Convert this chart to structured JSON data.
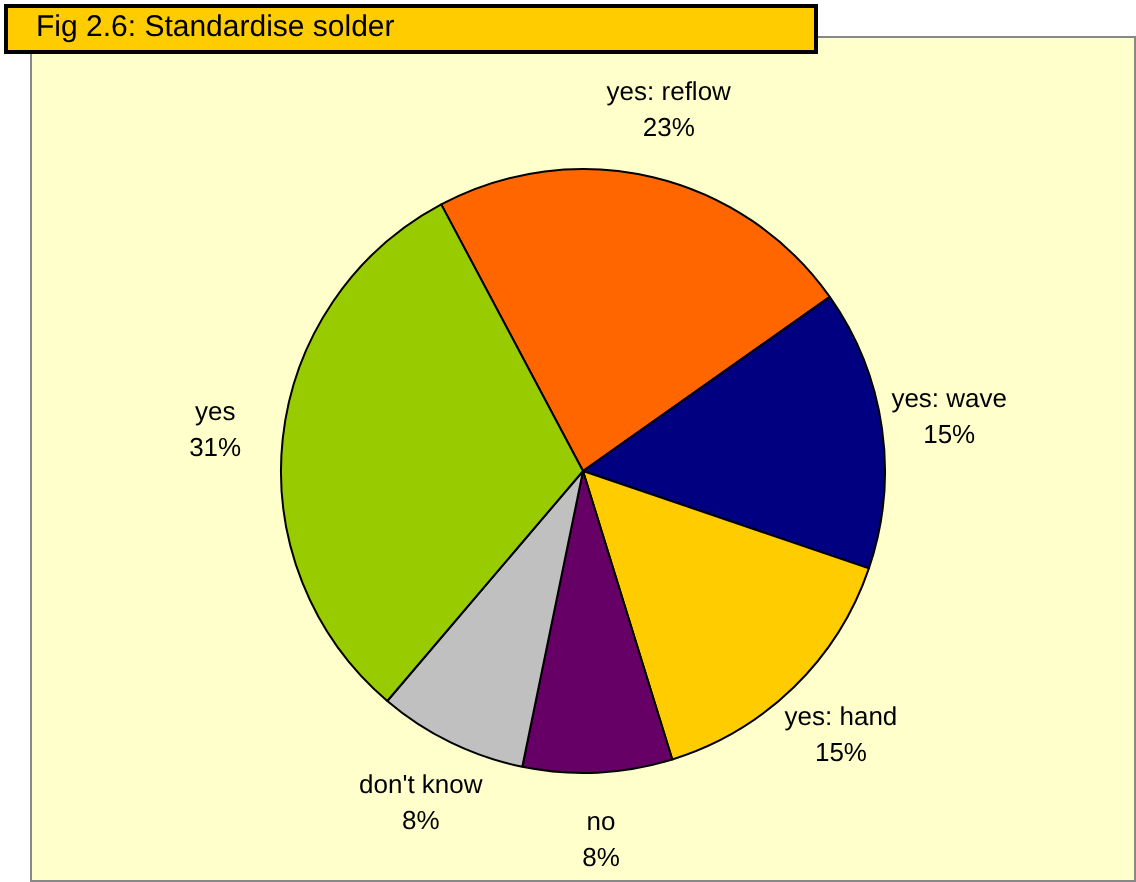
{
  "chart_data": {
    "type": "pie",
    "title": "Fig 2.6: Standardise solder",
    "categories": [
      "yes: reflow",
      "yes: wave",
      "yes: hand",
      "no",
      "don't know",
      "yes"
    ],
    "values": [
      23,
      15,
      15,
      8,
      8,
      31
    ],
    "colors": [
      "#ff6600",
      "#000080",
      "#ffcc00",
      "#660066",
      "#c0c0c0",
      "#99cc00"
    ],
    "value_labels": [
      "23%",
      "15%",
      "15%",
      "8%",
      "8%",
      "31%"
    ],
    "legend": false
  }
}
